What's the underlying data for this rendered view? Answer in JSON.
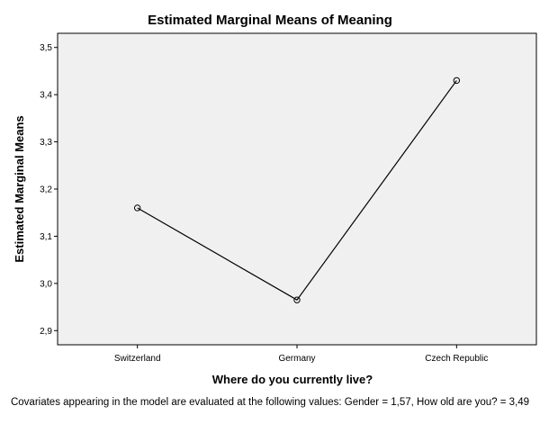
{
  "chart_data": {
    "type": "line",
    "title": "Estimated Marginal Means of Meaning",
    "xlabel": "Where do you currently live?",
    "ylabel": "Estimated Marginal Means",
    "categories": [
      "Switzerland",
      "Germany",
      "Czech Republic"
    ],
    "series": [
      {
        "values": [
          3.16,
          2.965,
          3.43
        ]
      }
    ],
    "ylim": [
      2.87,
      3.53
    ],
    "yticks": [
      "2,9",
      "3,0",
      "3,1",
      "3,2",
      "3,3",
      "3,4",
      "3,5"
    ],
    "ytick_values": [
      2.9,
      3.0,
      3.1,
      3.2,
      3.3,
      3.4,
      3.5
    ],
    "grid": false,
    "plot_background": "#f0f0f0",
    "line_color": "#000000",
    "marker": "open-circle"
  },
  "footnote": "Covariates appearing in the model are evaluated at the following values: Gender = 1,57, How old are you? = 3,49"
}
